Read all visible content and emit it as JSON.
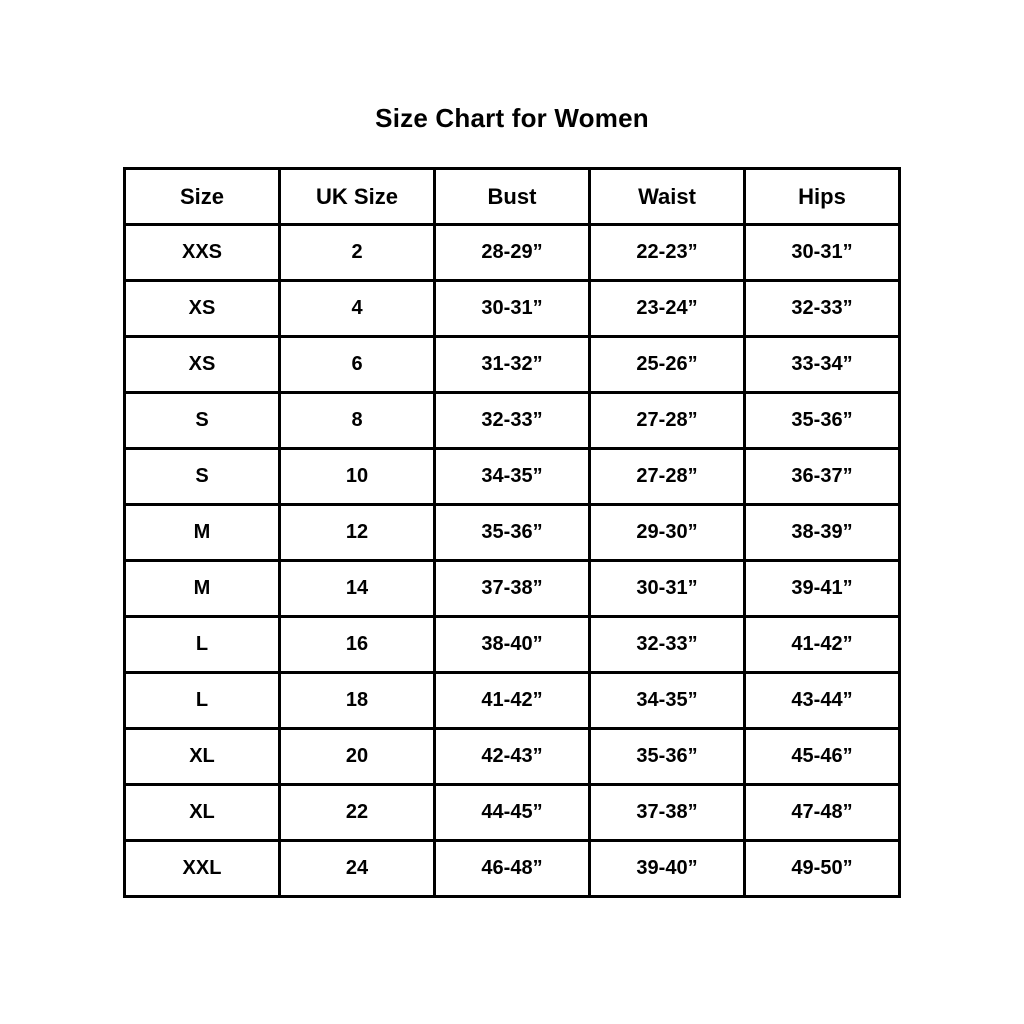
{
  "page": {
    "title": "Size Chart for Women"
  },
  "table": {
    "columns": [
      "Size",
      "UK Size",
      "Bust",
      "Waist",
      "Hips"
    ],
    "rows": [
      [
        "XXS",
        "2",
        "28-29”",
        "22-23”",
        "30-31”"
      ],
      [
        "XS",
        "4",
        "30-31”",
        "23-24”",
        "32-33”"
      ],
      [
        "XS",
        "6",
        "31-32”",
        "25-26”",
        "33-34”"
      ],
      [
        "S",
        "8",
        "32-33”",
        "27-28”",
        "35-36”"
      ],
      [
        "S",
        "10",
        "34-35”",
        "27-28”",
        "36-37”"
      ],
      [
        "M",
        "12",
        "35-36”",
        "29-30”",
        "38-39”"
      ],
      [
        "M",
        "14",
        "37-38”",
        "30-31”",
        "39-41”"
      ],
      [
        "L",
        "16",
        "38-40”",
        "32-33”",
        "41-42”"
      ],
      [
        "L",
        "18",
        "41-42”",
        "34-35”",
        "43-44”"
      ],
      [
        "XL",
        "20",
        "42-43”",
        "35-36”",
        "45-46”"
      ],
      [
        "XL",
        "22",
        "44-45”",
        "37-38”",
        "47-48”"
      ],
      [
        "XXL",
        "24",
        "46-48”",
        "39-40”",
        "49-50”"
      ]
    ]
  },
  "chart_data": {
    "type": "table",
    "title": "Size Chart for Women",
    "columns": [
      "Size",
      "UK Size",
      "Bust",
      "Waist",
      "Hips"
    ],
    "rows": [
      [
        "XXS",
        "2",
        "28-29”",
        "22-23”",
        "30-31”"
      ],
      [
        "XS",
        "4",
        "30-31”",
        "23-24”",
        "32-33”"
      ],
      [
        "XS",
        "6",
        "31-32”",
        "25-26”",
        "33-34”"
      ],
      [
        "S",
        "8",
        "32-33”",
        "27-28”",
        "35-36”"
      ],
      [
        "S",
        "10",
        "34-35”",
        "27-28”",
        "36-37”"
      ],
      [
        "M",
        "12",
        "35-36”",
        "29-30”",
        "38-39”"
      ],
      [
        "M",
        "14",
        "37-38”",
        "30-31”",
        "39-41”"
      ],
      [
        "L",
        "16",
        "38-40”",
        "32-33”",
        "41-42”"
      ],
      [
        "L",
        "18",
        "41-42”",
        "34-35”",
        "43-44”"
      ],
      [
        "XL",
        "20",
        "42-43”",
        "35-36”",
        "45-46”"
      ],
      [
        "XL",
        "22",
        "44-45”",
        "37-38”",
        "47-48”"
      ],
      [
        "XXL",
        "24",
        "46-48”",
        "39-40”",
        "49-50”"
      ]
    ]
  },
  "colors": {
    "background": "#ffffff",
    "text": "#000000",
    "border": "#000000"
  }
}
